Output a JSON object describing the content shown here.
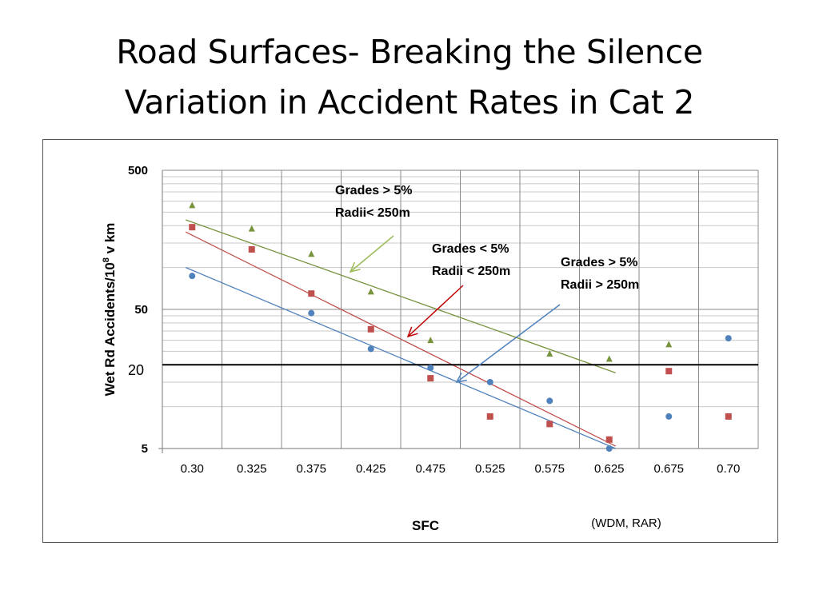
{
  "slide": {
    "title_line1": "Road Surfaces- Breaking the Silence",
    "title_line2": "Variation in Accident Rates in Cat 2"
  },
  "chart_data": {
    "type": "scatter",
    "title": "",
    "xlabel": "SFC",
    "ylabel_main": "Wet Rd Accidents/10",
    "ylabel_sup": "8",
    "ylabel_tail": " v km",
    "source_note": "(WDM, RAR)",
    "y_scale": "log",
    "ylim": [
      5,
      500
    ],
    "y_ticks": [
      "5",
      "50",
      "500"
    ],
    "categories": [
      "0.30",
      "0.325",
      "0.375",
      "0.425",
      "0.475",
      "0.525",
      "0.575",
      "0.625",
      "0.675",
      "0.70"
    ],
    "reference_line": {
      "value": 20,
      "label": "20"
    },
    "grid": true,
    "series": [
      {
        "marker": "triangle",
        "color": "#77933C",
        "values": [
          280,
          190,
          125,
          67,
          30,
          null,
          24,
          22,
          28,
          null
        ],
        "trend_start": [
          0,
          220
        ],
        "trend_end": [
          7,
          17.5
        ]
      },
      {
        "marker": "square",
        "color": "#C0504D",
        "values": [
          195,
          135,
          65,
          36,
          16,
          8.5,
          7.5,
          5.8,
          18,
          8.5
        ],
        "trend_start": [
          0,
          180
        ],
        "trend_end": [
          7,
          5.2
        ]
      },
      {
        "marker": "circle",
        "color": "#4F81BD",
        "values": [
          87,
          null,
          47,
          26,
          19,
          15,
          11,
          5,
          8.5,
          31
        ],
        "trend_start": [
          0,
          100
        ],
        "trend_end": [
          7,
          5
        ]
      }
    ],
    "annotations": [
      {
        "line1": "Grades > 5%",
        "line2": "Radii< 250m",
        "arrow_color": "#9BBB59"
      },
      {
        "line1": "Grades < 5%",
        "line2": "Radii  < 250m",
        "arrow_color": "#C00000"
      },
      {
        "line1": "Grades > 5%",
        "line2": "Radii  > 250m",
        "arrow_color": "#4F81BD"
      }
    ]
  }
}
